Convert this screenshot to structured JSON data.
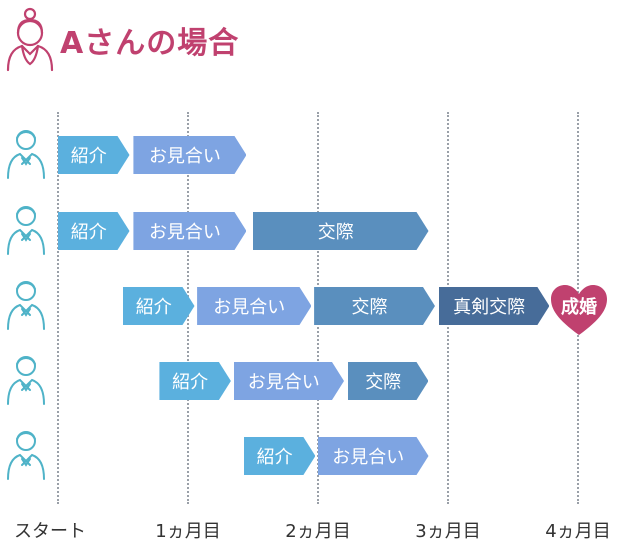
{
  "title": "Aさんの場合",
  "x_labels": [
    "スタート",
    "1ヵ月目",
    "2ヵ月目",
    "3ヵ月目",
    "4ヵ月目"
  ],
  "stages": {
    "intro": "紹介",
    "omiai": "お見合い",
    "kosai": "交際",
    "shinken": "真剣交際",
    "seikon": "成婚"
  },
  "colors": {
    "title": "#c0416f",
    "intro": "#5bb0de",
    "omiai": "#7ea4e2",
    "kosai": "#5a8fbe",
    "shinken": "#476c99",
    "seikon": "#c0416f",
    "person_outline": "#4fb3c8"
  },
  "rows": [
    {
      "person_icon": "man-icon",
      "segments": [
        {
          "stage": "intro",
          "label": "紹介",
          "start": 0.0,
          "end": 0.55
        },
        {
          "stage": "omiai",
          "label": "お見合い",
          "start": 0.58,
          "end": 1.45
        }
      ]
    },
    {
      "person_icon": "man-icon",
      "segments": [
        {
          "stage": "intro",
          "label": "紹介",
          "start": 0.0,
          "end": 0.55
        },
        {
          "stage": "omiai",
          "label": "お見合い",
          "start": 0.58,
          "end": 1.45
        },
        {
          "stage": "kosai",
          "label": "交際",
          "start": 1.5,
          "end": 2.85
        }
      ]
    },
    {
      "person_icon": "man-icon",
      "segments": [
        {
          "stage": "intro",
          "label": "紹介",
          "start": 0.5,
          "end": 1.05
        },
        {
          "stage": "omiai",
          "label": "お見合い",
          "start": 1.07,
          "end": 1.95
        },
        {
          "stage": "kosai",
          "label": "交際",
          "start": 1.97,
          "end": 2.9
        },
        {
          "stage": "shinken",
          "label": "真剣交際",
          "start": 2.93,
          "end": 3.78
        },
        {
          "stage": "seikon",
          "label": "成婚",
          "at": 3.95
        }
      ]
    },
    {
      "person_icon": "man-icon",
      "segments": [
        {
          "stage": "intro",
          "label": "紹介",
          "start": 0.78,
          "end": 1.33
        },
        {
          "stage": "omiai",
          "label": "お見合い",
          "start": 1.35,
          "end": 2.2
        },
        {
          "stage": "kosai",
          "label": "交際",
          "start": 2.23,
          "end": 2.85
        }
      ]
    },
    {
      "person_icon": "man-icon",
      "segments": [
        {
          "stage": "intro",
          "label": "紹介",
          "start": 1.43,
          "end": 1.98
        },
        {
          "stage": "omiai",
          "label": "お見合い",
          "start": 2.0,
          "end": 2.85
        }
      ]
    }
  ]
}
